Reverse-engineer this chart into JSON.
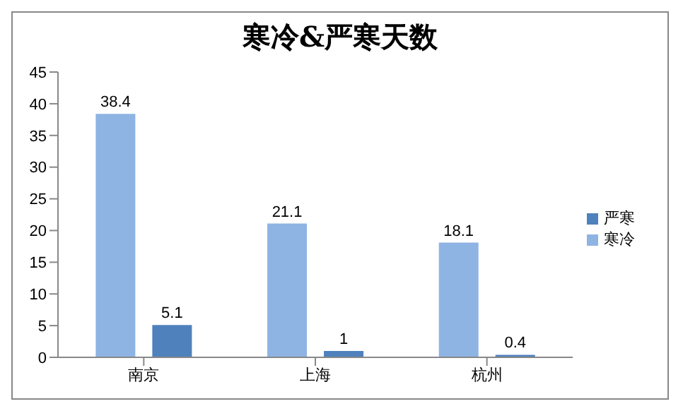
{
  "chart_data": {
    "type": "bar",
    "title": "寒冷&严寒天数",
    "categories": [
      "南京",
      "上海",
      "杭州"
    ],
    "series": [
      {
        "name": "寒冷",
        "color": "#8eb4e3",
        "values": [
          38.4,
          21.1,
          18.1
        ]
      },
      {
        "name": "严寒",
        "color": "#4f81bd",
        "values": [
          5.1,
          1,
          0.4
        ]
      }
    ],
    "ylim": [
      0,
      45
    ],
    "yticks": [
      0,
      5,
      10,
      15,
      20,
      25,
      30,
      35,
      40,
      45
    ],
    "data_labels": true,
    "legend": "right",
    "grid": false
  }
}
